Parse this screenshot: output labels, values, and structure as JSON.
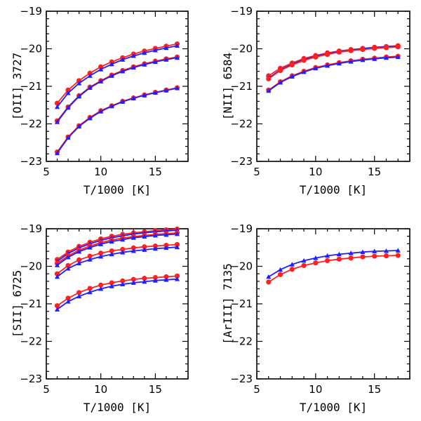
{
  "colors": {
    "red": "#ff2020",
    "blue": "#1f1fff",
    "axis": "#000000"
  },
  "chart_data": [
    {
      "type": "line",
      "title": "",
      "xlabel": "T/1000 [K]",
      "ylabel": "[OII] 3727",
      "xlim": [
        5,
        18
      ],
      "ylim": [
        -23,
        -19
      ],
      "xticks": [
        5,
        10,
        15
      ],
      "yticks": [
        -19,
        -20,
        -21,
        -22,
        -23
      ],
      "x": [
        6,
        7,
        8,
        9,
        10,
        11,
        12,
        13,
        14,
        15,
        16,
        17
      ],
      "series": [
        {
          "name": "red-1",
          "color": "#ff2020",
          "marker": "circle",
          "values": [
            -21.45,
            -21.1,
            -20.85,
            -20.65,
            -20.48,
            -20.35,
            -20.24,
            -20.14,
            -20.06,
            -19.99,
            -19.93,
            -19.87
          ]
        },
        {
          "name": "blue-1",
          "color": "#1f1fff",
          "marker": "triangle",
          "values": [
            -21.55,
            -21.18,
            -20.92,
            -20.72,
            -20.55,
            -20.41,
            -20.29,
            -20.19,
            -20.11,
            -20.04,
            -19.98,
            -19.92
          ]
        },
        {
          "name": "red-2",
          "color": "#ff2020",
          "marker": "circle",
          "values": [
            -21.92,
            -21.55,
            -21.25,
            -21.02,
            -20.85,
            -20.7,
            -20.58,
            -20.48,
            -20.4,
            -20.33,
            -20.27,
            -20.22
          ]
        },
        {
          "name": "blue-2",
          "color": "#1f1fff",
          "marker": "triangle",
          "values": [
            -21.95,
            -21.57,
            -21.27,
            -21.04,
            -20.87,
            -20.72,
            -20.6,
            -20.5,
            -20.42,
            -20.35,
            -20.29,
            -20.24
          ]
        },
        {
          "name": "red-3",
          "color": "#ff2020",
          "marker": "circle",
          "values": [
            -22.75,
            -22.35,
            -22.05,
            -21.83,
            -21.65,
            -21.52,
            -21.4,
            -21.31,
            -21.23,
            -21.16,
            -21.1,
            -21.04
          ]
        },
        {
          "name": "blue-3",
          "color": "#1f1fff",
          "marker": "triangle",
          "values": [
            -22.78,
            -22.37,
            -22.07,
            -21.85,
            -21.67,
            -21.53,
            -21.41,
            -21.32,
            -21.24,
            -21.17,
            -21.11,
            -21.05
          ]
        }
      ]
    },
    {
      "type": "line",
      "title": "",
      "xlabel": "T/1000 [K]",
      "ylabel": "[NII] 6584",
      "xlim": [
        5,
        18
      ],
      "ylim": [
        -23,
        -19
      ],
      "xticks": [
        5,
        10,
        15
      ],
      "yticks": [
        -19,
        -20,
        -21,
        -22,
        -23
      ],
      "x": [
        6,
        7,
        8,
        9,
        10,
        11,
        12,
        13,
        14,
        15,
        16,
        17
      ],
      "series": [
        {
          "name": "red-1",
          "color": "#ff2020",
          "marker": "circle",
          "values": [
            -20.72,
            -20.52,
            -20.38,
            -20.26,
            -20.18,
            -20.11,
            -20.06,
            -20.02,
            -19.99,
            -19.96,
            -19.94,
            -19.92
          ]
        },
        {
          "name": "blue-1",
          "color": "#1f1fff",
          "marker": "triangle",
          "values": [
            -20.78,
            -20.56,
            -20.41,
            -20.29,
            -20.2,
            -20.13,
            -20.08,
            -20.04,
            -20.0,
            -19.97,
            -19.95,
            -19.93
          ]
        },
        {
          "name": "red-2",
          "color": "#ff2020",
          "marker": "circle",
          "values": [
            -20.8,
            -20.58,
            -20.43,
            -20.31,
            -20.22,
            -20.15,
            -20.09,
            -20.05,
            -20.02,
            -19.99,
            -19.97,
            -19.95
          ]
        },
        {
          "name": "red-3",
          "color": "#ff2020",
          "marker": "circle",
          "values": [
            -21.1,
            -20.88,
            -20.72,
            -20.6,
            -20.5,
            -20.43,
            -20.37,
            -20.32,
            -20.28,
            -20.25,
            -20.22,
            -20.2
          ]
        },
        {
          "name": "blue-3",
          "color": "#1f1fff",
          "marker": "triangle",
          "values": [
            -21.12,
            -20.9,
            -20.74,
            -20.62,
            -20.52,
            -20.45,
            -20.39,
            -20.34,
            -20.3,
            -20.27,
            -20.24,
            -20.22
          ]
        }
      ]
    },
    {
      "type": "line",
      "title": "",
      "xlabel": "T/1000 [K]",
      "ylabel": "[SII] 6725",
      "xlim": [
        5,
        18
      ],
      "ylim": [
        -23,
        -19
      ],
      "xticks": [
        5,
        10,
        15
      ],
      "yticks": [
        -19,
        -20,
        -21,
        -22,
        -23
      ],
      "x": [
        6,
        7,
        8,
        9,
        10,
        11,
        12,
        13,
        14,
        15,
        16,
        17
      ],
      "series": [
        {
          "name": "red-1",
          "color": "#ff2020",
          "marker": "circle",
          "values": [
            -19.82,
            -19.62,
            -19.47,
            -19.36,
            -19.27,
            -19.2,
            -19.15,
            -19.11,
            -19.08,
            -19.05,
            -19.03,
            -19.01
          ]
        },
        {
          "name": "blue-1",
          "color": "#1f1fff",
          "marker": "triangle",
          "values": [
            -19.87,
            -19.66,
            -19.51,
            -19.4,
            -19.31,
            -19.24,
            -19.19,
            -19.14,
            -19.11,
            -19.08,
            -19.06,
            -19.04
          ]
        },
        {
          "name": "red-2",
          "color": "#ff2020",
          "marker": "circle",
          "values": [
            -19.92,
            -19.72,
            -19.57,
            -19.46,
            -19.37,
            -19.3,
            -19.25,
            -19.21,
            -19.18,
            -19.15,
            -19.13,
            -19.11
          ]
        },
        {
          "name": "blue-2",
          "color": "#1f1fff",
          "marker": "triangle",
          "values": [
            -19.97,
            -19.76,
            -19.61,
            -19.5,
            -19.41,
            -19.34,
            -19.29,
            -19.24,
            -19.21,
            -19.18,
            -19.16,
            -19.14
          ]
        },
        {
          "name": "red-3",
          "color": "#ff2020",
          "marker": "circle",
          "values": [
            -20.2,
            -19.98,
            -19.83,
            -19.73,
            -19.65,
            -19.59,
            -19.55,
            -19.51,
            -19.48,
            -19.46,
            -19.44,
            -19.42
          ]
        },
        {
          "name": "blue-3",
          "color": "#1f1fff",
          "marker": "triangle",
          "values": [
            -20.28,
            -20.06,
            -19.92,
            -19.82,
            -19.74,
            -19.68,
            -19.63,
            -19.59,
            -19.56,
            -19.53,
            -19.51,
            -19.49
          ]
        },
        {
          "name": "red-4",
          "color": "#ff2020",
          "marker": "circle",
          "values": [
            -21.05,
            -20.85,
            -20.7,
            -20.59,
            -20.5,
            -20.44,
            -20.39,
            -20.35,
            -20.32,
            -20.3,
            -20.28,
            -20.26
          ]
        },
        {
          "name": "blue-4",
          "color": "#1f1fff",
          "marker": "triangle",
          "values": [
            -21.15,
            -20.94,
            -20.8,
            -20.69,
            -20.6,
            -20.53,
            -20.48,
            -20.44,
            -20.41,
            -20.38,
            -20.36,
            -20.34
          ]
        }
      ]
    },
    {
      "type": "line",
      "title": "",
      "xlabel": "T/1000 [K]",
      "ylabel": "[ArIII] 7135",
      "xlim": [
        5,
        18
      ],
      "ylim": [
        -23,
        -19
      ],
      "xticks": [
        5,
        10,
        15
      ],
      "yticks": [
        -19,
        -20,
        -21,
        -22,
        -23
      ],
      "x": [
        6,
        7,
        8,
        9,
        10,
        11,
        12,
        13,
        14,
        15,
        16,
        17
      ],
      "series": [
        {
          "name": "blue-1",
          "color": "#1f1fff",
          "marker": "triangle",
          "values": [
            -20.28,
            -20.09,
            -19.95,
            -19.85,
            -19.78,
            -19.72,
            -19.68,
            -19.65,
            -19.62,
            -19.6,
            -19.59,
            -19.58
          ]
        },
        {
          "name": "red-1",
          "color": "#ff2020",
          "marker": "circle",
          "values": [
            -20.42,
            -20.22,
            -20.08,
            -19.98,
            -19.91,
            -19.85,
            -19.81,
            -19.78,
            -19.75,
            -19.73,
            -19.72,
            -19.71
          ]
        }
      ]
    }
  ]
}
